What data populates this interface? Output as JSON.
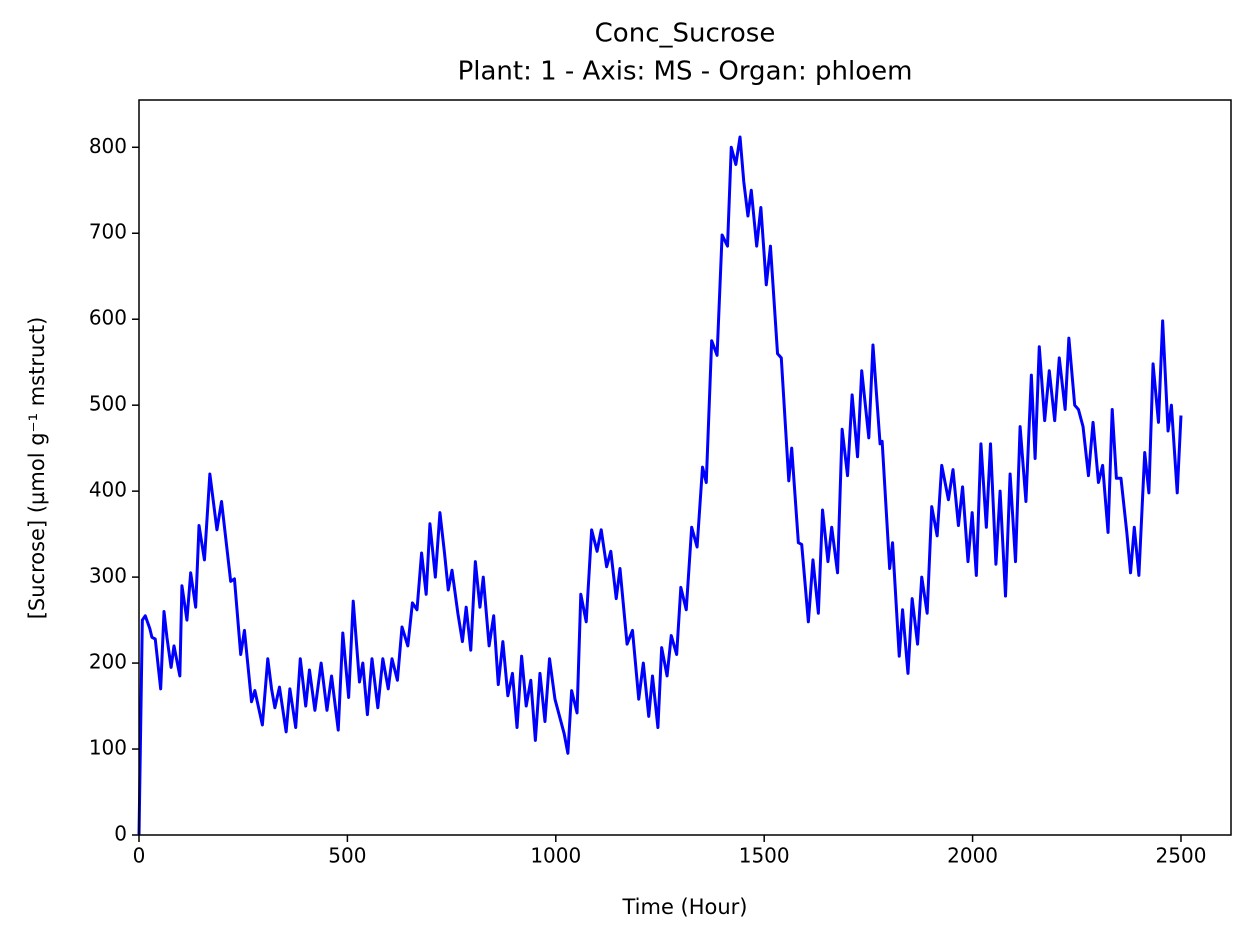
{
  "chart_data": {
    "type": "line",
    "title": "Conc_Sucrose",
    "subtitle": "Plant: 1 - Axis: MS - Organ: phloem",
    "x_label": "Time (Hour)",
    "y_label": "[Sucrose] (µmol g⁻¹ mstruct)",
    "color": "#0000ff",
    "xlim": [
      0,
      2620
    ],
    "ylim": [
      0,
      855
    ],
    "xticks": [
      0,
      500,
      1000,
      1500,
      2000,
      2500
    ],
    "yticks": [
      0,
      100,
      200,
      300,
      400,
      500,
      600,
      700,
      800
    ],
    "grid": false,
    "x": [
      0,
      8,
      15,
      26,
      31,
      39,
      52,
      60,
      67,
      77,
      84,
      98,
      103,
      115,
      124,
      136,
      144,
      157,
      170,
      187,
      198,
      220,
      229,
      244,
      253,
      270,
      278,
      296,
      309,
      318,
      326,
      337,
      353,
      362,
      376,
      387,
      400,
      409,
      422,
      437,
      451,
      462,
      478,
      489,
      503,
      514,
      529,
      537,
      548,
      559,
      573,
      585,
      598,
      607,
      620,
      631,
      645,
      656,
      667,
      678,
      689,
      698,
      711,
      722,
      733,
      742,
      751,
      765,
      776,
      785,
      796,
      807,
      818,
      826,
      840,
      851,
      862,
      873,
      885,
      896,
      907,
      918,
      929,
      940,
      951,
      962,
      974,
      985,
      998,
      1009,
      1020,
      1029,
      1038,
      1051,
      1060,
      1073,
      1086,
      1099,
      1109,
      1122,
      1132,
      1145,
      1154,
      1171,
      1184,
      1199,
      1210,
      1223,
      1232,
      1245,
      1254,
      1267,
      1277,
      1290,
      1300,
      1313,
      1326,
      1339,
      1352,
      1361,
      1374,
      1387,
      1399,
      1412,
      1421,
      1432,
      1442,
      1451,
      1461,
      1469,
      1482,
      1492,
      1505,
      1515,
      1532,
      1541,
      1559,
      1566,
      1582,
      1590,
      1606,
      1617,
      1630,
      1640,
      1653,
      1662,
      1676,
      1687,
      1700,
      1711,
      1724,
      1734,
      1751,
      1761,
      1778,
      1783,
      1801,
      1808,
      1824,
      1832,
      1845,
      1855,
      1868,
      1878,
      1891,
      1902,
      1915,
      1926,
      1942,
      1953,
      1966,
      1976,
      1989,
      1999,
      2009,
      2020,
      2033,
      2043,
      2056,
      2066,
      2079,
      2090,
      2103,
      2114,
      2128,
      2141,
      2150,
      2160,
      2173,
      2184,
      2197,
      2208,
      2222,
      2231,
      2245,
      2254,
      2265,
      2278,
      2289,
      2302,
      2312,
      2325,
      2335,
      2345,
      2356,
      2370,
      2379,
      2388,
      2399,
      2413,
      2423,
      2433,
      2446,
      2456,
      2469,
      2477,
      2491,
      2500
    ],
    "values": [
      0,
      250,
      255,
      240,
      230,
      228,
      170,
      260,
      230,
      195,
      220,
      185,
      290,
      250,
      305,
      265,
      360,
      320,
      420,
      355,
      388,
      295,
      298,
      210,
      238,
      155,
      168,
      128,
      205,
      170,
      148,
      172,
      120,
      170,
      125,
      205,
      150,
      192,
      145,
      200,
      145,
      185,
      122,
      235,
      160,
      272,
      178,
      200,
      140,
      205,
      148,
      205,
      170,
      205,
      180,
      242,
      220,
      270,
      262,
      328,
      280,
      362,
      300,
      375,
      328,
      285,
      308,
      258,
      225,
      265,
      215,
      318,
      265,
      300,
      220,
      255,
      175,
      225,
      162,
      188,
      125,
      208,
      150,
      180,
      110,
      188,
      132,
      205,
      158,
      138,
      118,
      95,
      168,
      142,
      280,
      248,
      355,
      330,
      355,
      312,
      330,
      275,
      310,
      222,
      238,
      158,
      200,
      138,
      185,
      125,
      218,
      185,
      232,
      210,
      288,
      262,
      358,
      335,
      428,
      410,
      575,
      558,
      698,
      685,
      800,
      780,
      812,
      760,
      720,
      750,
      685,
      730,
      640,
      685,
      560,
      555,
      412,
      450,
      340,
      338,
      248,
      320,
      258,
      378,
      318,
      358,
      305,
      472,
      418,
      512,
      440,
      540,
      462,
      570,
      455,
      458,
      310,
      340,
      208,
      262,
      188,
      275,
      222,
      300,
      258,
      382,
      348,
      430,
      390,
      425,
      360,
      405,
      318,
      375,
      302,
      455,
      358,
      455,
      315,
      400,
      278,
      420,
      318,
      475,
      388,
      535,
      438,
      568,
      482,
      540,
      482,
      555,
      495,
      578,
      500,
      495,
      475,
      418,
      480,
      410,
      430,
      352,
      495,
      415,
      415,
      352,
      305,
      358,
      302,
      445,
      398,
      548,
      480,
      598,
      470,
      500,
      398,
      488
    ]
  }
}
